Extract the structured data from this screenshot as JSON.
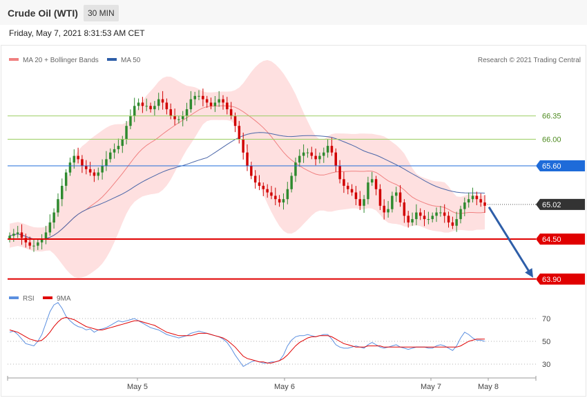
{
  "header": {
    "title": "Crude Oil (WTI)",
    "interval": "30 MIN"
  },
  "timestamp": "Friday, May 7, 2021 8:31:53 AM CET",
  "legend": {
    "ma20": "MA 20 + Bollinger Bands",
    "ma50": "MA 50",
    "rsi": "RSI",
    "ma9": "9MA"
  },
  "copyright": "Research © 2021 Trading Central",
  "colors": {
    "bullish": "#2f8a2f",
    "bearish": "#d10000",
    "bands": "#fdd6d6",
    "ma20": "#f08080",
    "ma50": "#4a66a8",
    "support": "#e00000",
    "resistance_line": "#1e6bd9",
    "green_level": "#9acd60",
    "current": "#333333",
    "forecast_arrow": "#2e5ea8",
    "rsi": "#5b8fe0",
    "rsi_ma": "#e00000"
  },
  "chart_data": [
    {
      "type": "candlestick",
      "x_tick_labels": [
        "May 5",
        "May 6",
        "May 7",
        "May 8"
      ],
      "price_range": [
        63.6,
        67.0
      ],
      "levels": [
        {
          "label": "66.35",
          "value": 66.35,
          "kind": "resistance-minor"
        },
        {
          "label": "66.00",
          "value": 66.0,
          "kind": "resistance-minor"
        },
        {
          "label": "65.60",
          "value": 65.6,
          "kind": "resistance"
        },
        {
          "label": "65.02",
          "value": 65.02,
          "kind": "current"
        },
        {
          "label": "64.50",
          "value": 64.5,
          "kind": "support"
        },
        {
          "label": "63.90",
          "value": 63.9,
          "kind": "support"
        }
      ],
      "forecast": {
        "from": 64.98,
        "to": 63.92,
        "direction": "down"
      },
      "close_path": [
        64.55,
        64.58,
        64.6,
        64.52,
        64.45,
        64.4,
        64.4,
        64.45,
        64.5,
        64.6,
        64.75,
        64.9,
        65.1,
        65.3,
        65.5,
        65.65,
        65.75,
        65.7,
        65.6,
        65.55,
        65.5,
        65.45,
        65.5,
        65.6,
        65.7,
        65.8,
        65.85,
        65.9,
        66.0,
        66.2,
        66.35,
        66.5,
        66.55,
        66.5,
        66.5,
        66.45,
        66.5,
        66.6,
        66.55,
        66.45,
        66.35,
        66.3,
        66.3,
        66.35,
        66.45,
        66.6,
        66.65,
        66.65,
        66.6,
        66.55,
        66.5,
        66.55,
        66.6,
        66.55,
        66.45,
        66.35,
        66.2,
        66.0,
        65.8,
        65.6,
        65.45,
        65.35,
        65.3,
        65.25,
        65.2,
        65.15,
        65.1,
        65.05,
        65.1,
        65.25,
        65.45,
        65.65,
        65.75,
        65.8,
        65.8,
        65.75,
        65.7,
        65.75,
        65.8,
        65.9,
        65.8,
        65.6,
        65.4,
        65.3,
        65.25,
        65.2,
        65.1,
        65.0,
        65.1,
        65.35,
        65.4,
        65.25,
        65.0,
        64.9,
        64.95,
        65.15,
        65.2,
        65.05,
        64.85,
        64.75,
        64.8,
        64.9,
        64.85,
        64.8,
        64.8,
        64.85,
        64.9,
        64.9,
        64.85,
        64.75,
        64.7,
        64.8,
        64.95,
        65.05,
        65.1,
        65.15,
        65.1,
        65.05,
        65.0
      ]
    },
    {
      "type": "line",
      "series": [
        {
          "name": "RSI"
        },
        {
          "name": "9MA"
        }
      ],
      "y_ticks": [
        70,
        50,
        30
      ],
      "ylim": [
        20,
        85
      ],
      "rsi": [
        58,
        59,
        56,
        52,
        48,
        47,
        46,
        50,
        56,
        66,
        76,
        82,
        84,
        79,
        72,
        68,
        65,
        63,
        62,
        60,
        61,
        58,
        60,
        61,
        62,
        64,
        66,
        68,
        67,
        68,
        69,
        70,
        68,
        66,
        64,
        62,
        61,
        60,
        58,
        56,
        55,
        54,
        53,
        54,
        55,
        57,
        58,
        59,
        58,
        57,
        56,
        55,
        54,
        52,
        49,
        44,
        38,
        33,
        28,
        30,
        32,
        33,
        32,
        31,
        31,
        32,
        32,
        33,
        38,
        46,
        51,
        54,
        55,
        55,
        56,
        55,
        54,
        55,
        56,
        56,
        52,
        47,
        45,
        44,
        44,
        45,
        46,
        45,
        44,
        47,
        49,
        47,
        45,
        44,
        45,
        46,
        47,
        45,
        44,
        43,
        44,
        45,
        45,
        45,
        44,
        44,
        46,
        47,
        46,
        44,
        42,
        46,
        53,
        58,
        56,
        53,
        51,
        51,
        50
      ],
      "ma9": [
        60,
        59,
        58,
        56,
        54,
        52,
        51,
        50,
        51,
        54,
        58,
        63,
        67,
        70,
        71,
        70,
        69,
        67,
        65,
        63,
        62,
        61,
        60,
        60,
        61,
        62,
        63,
        64,
        65,
        66,
        67,
        68,
        68,
        67,
        66,
        65,
        64,
        62,
        60,
        58,
        57,
        56,
        55,
        55,
        55,
        55,
        56,
        57,
        57,
        57,
        56,
        55,
        54,
        53,
        51,
        48,
        45,
        41,
        37,
        35,
        34,
        33,
        32,
        32,
        31,
        31,
        32,
        33,
        35,
        38,
        42,
        46,
        49,
        51,
        53,
        54,
        54,
        55,
        55,
        55,
        54,
        52,
        50,
        48,
        47,
        46,
        45,
        45,
        45,
        46,
        46,
        46,
        46,
        45,
        45,
        45,
        45,
        45,
        45,
        45,
        45,
        45,
        45,
        45,
        45,
        45,
        45,
        45,
        45,
        45,
        45,
        45,
        46,
        48,
        50,
        51,
        52,
        52,
        52
      ]
    }
  ]
}
